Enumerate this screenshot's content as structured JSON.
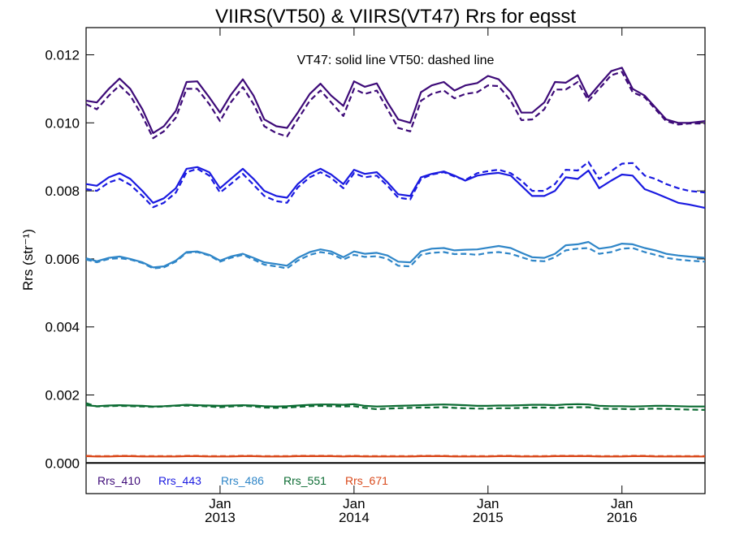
{
  "chart_data": {
    "type": "line",
    "title": "VIIRS(VT50) & VIIRS(VT47)  Rrs for eqsst",
    "ylabel": "Rrs (str⁻¹)",
    "annotation": "VT47: solid line   VT50: dashed line",
    "ylim": [
      -0.0009,
      0.0128
    ],
    "xlim": [
      2012.0,
      2016.62
    ],
    "yticks": [
      0.0,
      0.002,
      0.004,
      0.006,
      0.008,
      0.01,
      0.012
    ],
    "ytick_labels": [
      "0.000",
      "0.002",
      "0.004",
      "0.006",
      "0.008",
      "0.010",
      "0.012"
    ],
    "xticks": [
      {
        "value": 2013.0,
        "top": "Jan",
        "bottom": "2013"
      },
      {
        "value": 2014.0,
        "top": "Jan",
        "bottom": "2014"
      },
      {
        "value": 2015.0,
        "top": "Jan",
        "bottom": "2015"
      },
      {
        "value": 2016.0,
        "top": "Jan",
        "bottom": "2016"
      }
    ],
    "zero_line": 0.0,
    "legend_placement": "bottom-left",
    "x": [
      2012.0,
      2012.08,
      2012.17,
      2012.25,
      2012.33,
      2012.42,
      2012.5,
      2012.58,
      2012.67,
      2012.75,
      2012.83,
      2012.92,
      2013.0,
      2013.08,
      2013.17,
      2013.25,
      2013.33,
      2013.42,
      2013.5,
      2013.58,
      2013.67,
      2013.75,
      2013.83,
      2013.92,
      2014.0,
      2014.08,
      2014.17,
      2014.25,
      2014.33,
      2014.42,
      2014.5,
      2014.58,
      2014.67,
      2014.75,
      2014.83,
      2014.92,
      2015.0,
      2015.08,
      2015.17,
      2015.25,
      2015.33,
      2015.42,
      2015.5,
      2015.58,
      2015.67,
      2015.75,
      2015.83,
      2015.92,
      2016.0,
      2016.08,
      2016.17,
      2016.25,
      2016.33,
      2016.42,
      2016.5,
      2016.62
    ],
    "series": [
      {
        "name": "Rrs_410",
        "color": "#3d0a78",
        "solid": [
          0.01065,
          0.0106,
          0.011,
          0.0113,
          0.011,
          0.0104,
          0.0097,
          0.0099,
          0.01035,
          0.0112,
          0.01122,
          0.01075,
          0.0103,
          0.01082,
          0.01128,
          0.0108,
          0.0101,
          0.0099,
          0.00985,
          0.0103,
          0.01085,
          0.01115,
          0.0108,
          0.0105,
          0.01122,
          0.01106,
          0.01116,
          0.0106,
          0.0101,
          0.01,
          0.0109,
          0.0111,
          0.0112,
          0.01095,
          0.0111,
          0.01117,
          0.01138,
          0.01128,
          0.0109,
          0.0103,
          0.0103,
          0.0106,
          0.0112,
          0.01118,
          0.0114,
          0.01075,
          0.01112,
          0.01152,
          0.01162,
          0.011,
          0.0108,
          0.01045,
          0.0101,
          0.01,
          0.01,
          0.01005
        ],
        "dashed": [
          0.01055,
          0.0104,
          0.0108,
          0.0111,
          0.0108,
          0.0102,
          0.00955,
          0.00975,
          0.01015,
          0.011,
          0.011,
          0.01055,
          0.01005,
          0.0106,
          0.01105,
          0.01055,
          0.0099,
          0.0097,
          0.0096,
          0.0101,
          0.01065,
          0.01095,
          0.0106,
          0.0102,
          0.011,
          0.01085,
          0.01095,
          0.0104,
          0.00985,
          0.00975,
          0.01065,
          0.01085,
          0.01095,
          0.01072,
          0.01085,
          0.0109,
          0.0111,
          0.01108,
          0.01065,
          0.01008,
          0.0101,
          0.0104,
          0.01098,
          0.01098,
          0.0112,
          0.01065,
          0.011,
          0.0114,
          0.0115,
          0.0109,
          0.01075,
          0.0104,
          0.01005,
          0.00995,
          0.00998,
          0.00998
        ]
      },
      {
        "name": "Rrs_443",
        "color": "#1a1ae0",
        "solid": [
          0.0082,
          0.00815,
          0.0084,
          0.00852,
          0.00835,
          0.008,
          0.00765,
          0.00778,
          0.00808,
          0.00865,
          0.0087,
          0.00855,
          0.00808,
          0.00835,
          0.00865,
          0.00835,
          0.008,
          0.00785,
          0.0078,
          0.0082,
          0.0085,
          0.00865,
          0.00848,
          0.0082,
          0.00862,
          0.0085,
          0.00855,
          0.00825,
          0.0079,
          0.00785,
          0.0084,
          0.0085,
          0.00857,
          0.00845,
          0.0083,
          0.00845,
          0.0085,
          0.00853,
          0.00845,
          0.00815,
          0.00785,
          0.00785,
          0.008,
          0.0084,
          0.00835,
          0.0086,
          0.00808,
          0.0083,
          0.00848,
          0.00845,
          0.00805,
          0.00793,
          0.0078,
          0.00765,
          0.0076,
          0.0075
        ],
        "dashed": [
          0.00805,
          0.008,
          0.00825,
          0.00835,
          0.00818,
          0.00785,
          0.00752,
          0.00765,
          0.00795,
          0.00855,
          0.00865,
          0.00845,
          0.00795,
          0.0082,
          0.0085,
          0.00818,
          0.00785,
          0.0077,
          0.00765,
          0.0081,
          0.0084,
          0.00855,
          0.00838,
          0.00808,
          0.00852,
          0.0084,
          0.00845,
          0.00815,
          0.0078,
          0.00775,
          0.00835,
          0.00848,
          0.00855,
          0.00842,
          0.00832,
          0.00852,
          0.00858,
          0.00862,
          0.00852,
          0.0083,
          0.008,
          0.008,
          0.0082,
          0.00862,
          0.0086,
          0.00885,
          0.00835,
          0.00858,
          0.0088,
          0.00882,
          0.00845,
          0.00835,
          0.0082,
          0.00808,
          0.008,
          0.00795
        ]
      },
      {
        "name": "Rrs_486",
        "color": "#2f86c8",
        "solid": [
          0.00602,
          0.00593,
          0.00603,
          0.00607,
          0.006,
          0.0059,
          0.00575,
          0.00578,
          0.00595,
          0.0062,
          0.00622,
          0.00612,
          0.00595,
          0.00607,
          0.00615,
          0.00603,
          0.0059,
          0.00585,
          0.0058,
          0.00603,
          0.0062,
          0.00628,
          0.00622,
          0.00605,
          0.00622,
          0.00615,
          0.00618,
          0.0061,
          0.00592,
          0.0059,
          0.00622,
          0.0063,
          0.00632,
          0.00625,
          0.00627,
          0.00628,
          0.00633,
          0.00638,
          0.00632,
          0.00618,
          0.00605,
          0.00603,
          0.00615,
          0.0064,
          0.00643,
          0.0065,
          0.0063,
          0.00635,
          0.00645,
          0.00643,
          0.00632,
          0.00625,
          0.00615,
          0.0061,
          0.00607,
          0.00603
        ],
        "dashed": [
          0.00598,
          0.0059,
          0.006,
          0.00602,
          0.00598,
          0.00588,
          0.00572,
          0.00575,
          0.00592,
          0.00618,
          0.0062,
          0.0061,
          0.00592,
          0.00603,
          0.00612,
          0.00598,
          0.00583,
          0.00578,
          0.00572,
          0.00595,
          0.00612,
          0.0062,
          0.00615,
          0.00598,
          0.00612,
          0.00606,
          0.00608,
          0.006,
          0.0058,
          0.00578,
          0.00612,
          0.00618,
          0.0062,
          0.00614,
          0.00615,
          0.00612,
          0.00618,
          0.0062,
          0.00615,
          0.00605,
          0.00595,
          0.00593,
          0.00605,
          0.00625,
          0.0063,
          0.00632,
          0.00615,
          0.0062,
          0.0063,
          0.00632,
          0.0062,
          0.00612,
          0.00603,
          0.00598,
          0.00595,
          0.00592
        ]
      },
      {
        "name": "Rrs_551",
        "color": "#0b6b32",
        "solid": [
          0.0017,
          0.00167,
          0.00169,
          0.0017,
          0.00169,
          0.00168,
          0.00166,
          0.00167,
          0.00169,
          0.00171,
          0.0017,
          0.00169,
          0.00168,
          0.00169,
          0.0017,
          0.00169,
          0.00167,
          0.00166,
          0.00167,
          0.00169,
          0.00171,
          0.00172,
          0.00172,
          0.00171,
          0.00173,
          0.00168,
          0.00166,
          0.00167,
          0.00168,
          0.00169,
          0.0017,
          0.00171,
          0.00172,
          0.00171,
          0.0017,
          0.00168,
          0.00168,
          0.00169,
          0.00169,
          0.0017,
          0.00171,
          0.00171,
          0.0017,
          0.00172,
          0.00173,
          0.00172,
          0.00168,
          0.00167,
          0.00167,
          0.00166,
          0.00167,
          0.00168,
          0.00168,
          0.00167,
          0.00166,
          0.00166
        ],
        "dashed": [
          0.00176,
          0.00166,
          0.00167,
          0.00168,
          0.00167,
          0.00166,
          0.00165,
          0.00166,
          0.00168,
          0.00169,
          0.00168,
          0.00166,
          0.00164,
          0.00166,
          0.00168,
          0.00166,
          0.00163,
          0.00162,
          0.00163,
          0.00165,
          0.00167,
          0.00168,
          0.00167,
          0.00166,
          0.00167,
          0.00162,
          0.00158,
          0.0016,
          0.00161,
          0.00162,
          0.00163,
          0.00163,
          0.00164,
          0.00162,
          0.00161,
          0.0016,
          0.0016,
          0.00161,
          0.00161,
          0.00162,
          0.00163,
          0.00163,
          0.00162,
          0.00163,
          0.00164,
          0.00164,
          0.0016,
          0.00159,
          0.00159,
          0.00158,
          0.00159,
          0.0016,
          0.00159,
          0.00158,
          0.00157,
          0.00156
        ]
      },
      {
        "name": "Rrs_671",
        "color": "#d9481a",
        "solid": [
          0.0002,
          0.00019,
          0.00019,
          0.0002,
          0.0002,
          0.00019,
          0.00019,
          0.00019,
          0.00019,
          0.0002,
          0.0002,
          0.00019,
          0.00019,
          0.00019,
          0.0002,
          0.0002,
          0.00019,
          0.00019,
          0.00019,
          0.0002,
          0.0002,
          0.0002,
          0.0002,
          0.00019,
          0.0002,
          0.00019,
          0.00019,
          0.00019,
          0.00019,
          0.00019,
          0.0002,
          0.0002,
          0.0002,
          0.00019,
          0.00019,
          0.00019,
          0.00019,
          0.0002,
          0.0002,
          0.00019,
          0.00019,
          0.00019,
          0.0002,
          0.0002,
          0.0002,
          0.0002,
          0.00019,
          0.00019,
          0.00019,
          0.0002,
          0.0002,
          0.00019,
          0.00019,
          0.00019,
          0.00019,
          0.00019
        ],
        "dashed": [
          0.00021,
          0.0002,
          0.0002,
          0.00021,
          0.00021,
          0.0002,
          0.0002,
          0.0002,
          0.0002,
          0.00021,
          0.00021,
          0.0002,
          0.0002,
          0.0002,
          0.00021,
          0.00021,
          0.0002,
          0.0002,
          0.0002,
          0.00021,
          0.00021,
          0.00021,
          0.00021,
          0.0002,
          0.00021,
          0.0002,
          0.0002,
          0.0002,
          0.0002,
          0.0002,
          0.00021,
          0.00021,
          0.00021,
          0.0002,
          0.0002,
          0.0002,
          0.0002,
          0.00021,
          0.00021,
          0.0002,
          0.0002,
          0.0002,
          0.00021,
          0.00021,
          0.00021,
          0.00021,
          0.0002,
          0.0002,
          0.0002,
          0.00021,
          0.00021,
          0.0002,
          0.0002,
          0.0002,
          0.0002,
          0.0002
        ]
      }
    ]
  }
}
